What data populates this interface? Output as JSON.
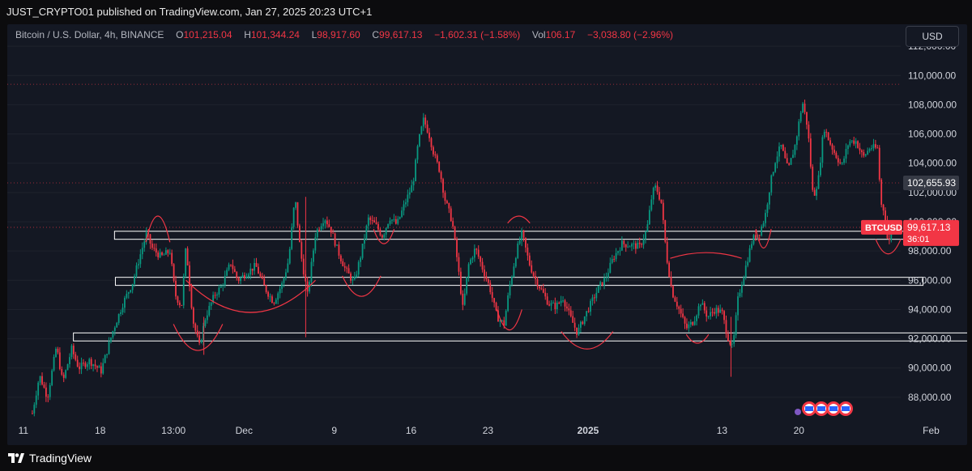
{
  "header": {
    "published_text": "JUST_CRYPTO01 published on TradingView.com, Jan 27, 2025 20:23 UTC+1"
  },
  "legend": {
    "symbol": "Bitcoin / U.S. Dollar, 4h, BINANCE",
    "o_label": "O",
    "o_value": "101,215.04",
    "h_label": "H",
    "h_value": "101,344.24",
    "l_label": "L",
    "l_value": "98,917.60",
    "c_label": "C",
    "c_value": "99,617.13",
    "change": "−1,602.31 (−1.58%)",
    "vol_label": "Vol",
    "vol_value": "106.17",
    "vol_change": "−3,038.80 (−2.96%)"
  },
  "currency_button": "USD",
  "price_labels": {
    "marker_price": "102,655.93",
    "symbol_tag": "BTCUSD",
    "last_price": "99,617.13",
    "countdown": "36:01"
  },
  "footer": {
    "brand": "TradingView"
  },
  "colors": {
    "up": "#089981",
    "down": "#f23645",
    "background": "#141823",
    "grid": "#1e222d"
  },
  "chart_data": {
    "type": "candlestick",
    "title": "Bitcoin / U.S. Dollar, 4h, BINANCE",
    "ylim": [
      86500,
      113500
    ],
    "y_ticks": [
      88000,
      90000,
      92000,
      94000,
      96000,
      98000,
      100000,
      102000,
      104000,
      106000,
      108000,
      110000,
      112000
    ],
    "y_tick_labels": [
      "88,000.00",
      "90,000.00",
      "92,000.00",
      "94,000.00",
      "96,000.00",
      "98,000.00",
      "100,000.00",
      "102,000.00",
      "104,000.00",
      "106,000.00",
      "108,000.00",
      "110,000.00",
      "112,000.00"
    ],
    "x_range": [
      0,
      1000
    ],
    "x_ticks": [
      {
        "label": "11",
        "x": 18
      },
      {
        "label": "18",
        "x": 104
      },
      {
        "label": "13:00",
        "x": 186
      },
      {
        "label": "Dec",
        "x": 265
      },
      {
        "label": "9",
        "x": 366
      },
      {
        "label": "16",
        "x": 452
      },
      {
        "label": "23",
        "x": 538
      },
      {
        "label": "2025",
        "x": 650
      },
      {
        "label": "13",
        "x": 800
      },
      {
        "label": "20",
        "x": 886
      },
      {
        "label": "Feb",
        "x": 1034
      }
    ],
    "path_points": [
      [
        28,
        86900
      ],
      [
        36,
        89500
      ],
      [
        45,
        88000
      ],
      [
        55,
        91500
      ],
      [
        62,
        89000
      ],
      [
        72,
        91300
      ],
      [
        80,
        90000
      ],
      [
        92,
        90500
      ],
      [
        105,
        89800
      ],
      [
        118,
        92500
      ],
      [
        130,
        94500
      ],
      [
        140,
        95800
      ],
      [
        150,
        98000
      ],
      [
        156,
        99200
      ],
      [
        162,
        98200
      ],
      [
        172,
        97600
      ],
      [
        182,
        98000
      ],
      [
        188,
        95000
      ],
      [
        195,
        94200
      ],
      [
        200,
        98300
      ],
      [
        208,
        93200
      ],
      [
        215,
        91500
      ],
      [
        222,
        93500
      ],
      [
        232,
        95000
      ],
      [
        240,
        95600
      ],
      [
        250,
        97200
      ],
      [
        258,
        96000
      ],
      [
        268,
        96500
      ],
      [
        278,
        97000
      ],
      [
        288,
        95500
      ],
      [
        298,
        94500
      ],
      [
        308,
        95800
      ],
      [
        315,
        97400
      ],
      [
        322,
        101700
      ],
      [
        328,
        98000
      ],
      [
        336,
        95000
      ],
      [
        345,
        99200
      ],
      [
        355,
        100300
      ],
      [
        362,
        99500
      ],
      [
        370,
        98000
      ],
      [
        378,
        96800
      ],
      [
        388,
        95800
      ],
      [
        396,
        97800
      ],
      [
        404,
        100200
      ],
      [
        412,
        99800
      ],
      [
        420,
        99000
      ],
      [
        428,
        100300
      ],
      [
        436,
        99800
      ],
      [
        446,
        101400
      ],
      [
        454,
        102600
      ],
      [
        460,
        105400
      ],
      [
        466,
        107000
      ],
      [
        472,
        106000
      ],
      [
        478,
        104500
      ],
      [
        484,
        103500
      ],
      [
        490,
        101500
      ],
      [
        498,
        100000
      ],
      [
        504,
        97200
      ],
      [
        510,
        94000
      ],
      [
        516,
        97000
      ],
      [
        524,
        98200
      ],
      [
        532,
        96800
      ],
      [
        540,
        95500
      ],
      [
        548,
        93500
      ],
      [
        556,
        93000
      ],
      [
        562,
        95500
      ],
      [
        570,
        98000
      ],
      [
        576,
        99200
      ],
      [
        584,
        97200
      ],
      [
        590,
        96200
      ],
      [
        598,
        95300
      ],
      [
        606,
        94400
      ],
      [
        614,
        94200
      ],
      [
        622,
        94800
      ],
      [
        630,
        93500
      ],
      [
        638,
        92400
      ],
      [
        646,
        93500
      ],
      [
        654,
        94500
      ],
      [
        662,
        95500
      ],
      [
        670,
        96200
      ],
      [
        678,
        97500
      ],
      [
        688,
        98500
      ],
      [
        698,
        98400
      ],
      [
        708,
        98300
      ],
      [
        716,
        99500
      ],
      [
        722,
        102000
      ],
      [
        726,
        102400
      ],
      [
        732,
        101300
      ],
      [
        738,
        97600
      ],
      [
        744,
        95200
      ],
      [
        752,
        94000
      ],
      [
        760,
        92700
      ],
      [
        768,
        93200
      ],
      [
        776,
        94500
      ],
      [
        784,
        93500
      ],
      [
        792,
        94000
      ],
      [
        800,
        93800
      ],
      [
        806,
        92200
      ],
      [
        812,
        91300
      ],
      [
        818,
        94800
      ],
      [
        826,
        96800
      ],
      [
        834,
        98800
      ],
      [
        842,
        99300
      ],
      [
        848,
        100300
      ],
      [
        854,
        102600
      ],
      [
        860,
        104300
      ],
      [
        866,
        105200
      ],
      [
        874,
        103500
      ],
      [
        882,
        105300
      ],
      [
        890,
        108200
      ],
      [
        896,
        106400
      ],
      [
        902,
        101600
      ],
      [
        908,
        103000
      ],
      [
        914,
        106500
      ],
      [
        920,
        105500
      ],
      [
        926,
        104700
      ],
      [
        934,
        103800
      ],
      [
        942,
        105500
      ],
      [
        950,
        105500
      ],
      [
        958,
        104400
      ],
      [
        966,
        105100
      ],
      [
        974,
        105000
      ],
      [
        978,
        101200
      ],
      [
        982,
        100700
      ],
      [
        986,
        98300
      ],
      [
        990,
        99600
      ]
    ],
    "zones": [
      {
        "x_start": 120,
        "x_end": 1025,
        "y_low": 98800,
        "y_high": 99350
      },
      {
        "x_start": 121,
        "x_end": 1025,
        "y_low": 95650,
        "y_high": 96200
      },
      {
        "x_start": 74,
        "x_end": 1088,
        "y_low": 91850,
        "y_high": 92400
      }
    ],
    "arcs": [
      {
        "x1": 155,
        "x2": 182,
        "depth": 98600,
        "direction": "cap",
        "peak": 100000
      },
      {
        "x1": 200,
        "x2": 345,
        "depth": 93800,
        "direction": "cup",
        "top": 96000
      },
      {
        "x1": 186,
        "x2": 241,
        "depth": 91200,
        "direction": "cup",
        "top": 93000
      },
      {
        "x1": 375,
        "x2": 418,
        "depth": 94900,
        "direction": "cup",
        "top": 96300
      },
      {
        "x1": 410,
        "x2": 433,
        "depth": 98500,
        "direction": "cup",
        "top": 99500
      },
      {
        "x1": 548,
        "x2": 576,
        "depth": 92600,
        "direction": "cup",
        "top": 94000
      },
      {
        "x1": 560,
        "x2": 585,
        "depth": 99900,
        "direction": "cap",
        "peak": 100000
      },
      {
        "x1": 620,
        "x2": 678,
        "depth": 91300,
        "direction": "cup",
        "top": 92500
      },
      {
        "x1": 742,
        "x2": 822,
        "depth": 97500,
        "direction": "cap",
        "peak": 97500
      },
      {
        "x1": 760,
        "x2": 785,
        "depth": 91700,
        "direction": "cup",
        "top": 92300
      },
      {
        "x1": 838,
        "x2": 855,
        "depth": 98200,
        "direction": "cup",
        "top": 99500
      },
      {
        "x1": 972,
        "x2": 1000,
        "depth": 97800,
        "direction": "cup",
        "top": 98800
      }
    ],
    "spikes": [
      {
        "x": 334,
        "low": 92100,
        "high": 101700
      },
      {
        "x": 220,
        "low": 90900,
        "high": 93500
      },
      {
        "x": 810,
        "low": 89400,
        "high": 93500
      }
    ],
    "h_lines": [
      {
        "value": 102655.93,
        "style": "dotted",
        "color": "#f23645"
      },
      {
        "value": 109400,
        "style": "dotted",
        "color": "#f23645"
      },
      {
        "value": 99617.13,
        "style": "dotted",
        "color": "#f23645"
      }
    ],
    "last_price": 99617.13,
    "marker_price": 102655.93
  }
}
